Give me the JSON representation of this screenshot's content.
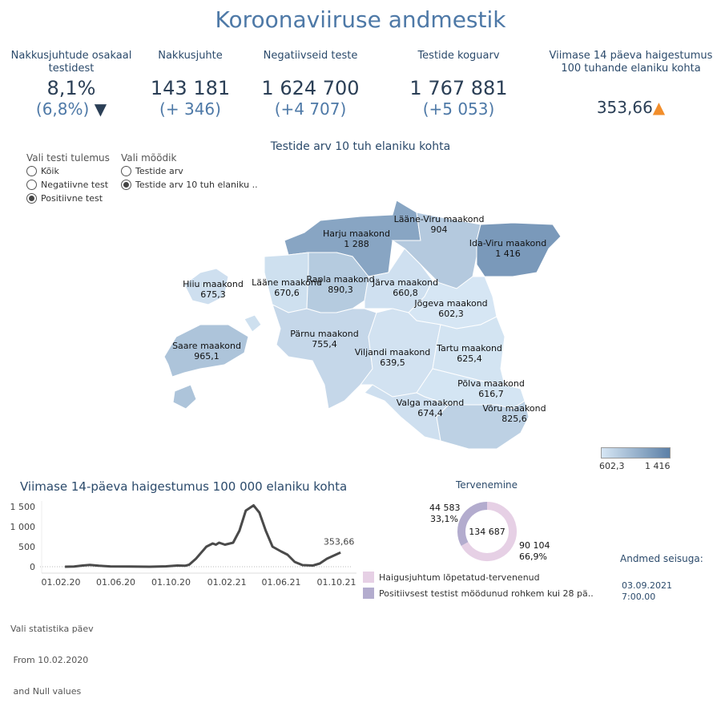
{
  "title": "Koroonaviiruse andmestik",
  "kpis": [
    {
      "label": "Nakkusjuhtude osakaal testidest",
      "value": "8,1%",
      "delta": "(6,8%)",
      "trend": "down",
      "trend_color": "#2b3f56"
    },
    {
      "label": "Nakkusjuhte",
      "value": "143 181",
      "delta": "(+ 346)"
    },
    {
      "label": "Negatiivseid teste",
      "value": "1 624 700",
      "delta": "(+4 707)"
    },
    {
      "label": "Testide koguarv",
      "value": "1 767 881",
      "delta": "(+5 053)"
    },
    {
      "label": "Viimase 14 päeva haigestumus 100 tuhande elaniku kohta",
      "value": "353,66",
      "trend": "up",
      "trend_color": "#f28e2b"
    }
  ],
  "filters": {
    "test_result": {
      "label": "Vali testi tulemus",
      "options": [
        "Kõik",
        "Negatiivne test",
        "Positiivne test"
      ],
      "selected": "Positiivne test"
    },
    "metric": {
      "label": "Vali mõõdik",
      "options": [
        "Testide arv",
        "Testide arv 10 tuh elaniku .."
      ],
      "selected": "Testide arv 10 tuh elaniku .."
    }
  },
  "map": {
    "title": "Testide arv 10 tuh elaniku kohta",
    "color_low": "#d6e6f4",
    "color_high": "#5b7fa6",
    "legend_min": "602,3",
    "legend_max": "1 416",
    "counties": [
      {
        "name": "Harju maakond",
        "value": "1 288",
        "v": 1288
      },
      {
        "name": "Lääne-Viru maakond",
        "value": "904",
        "v": 904
      },
      {
        "name": "Ida-Viru maakond",
        "value": "1 416",
        "v": 1416
      },
      {
        "name": "Hiiu maakond",
        "value": "675,3",
        "v": 675.3
      },
      {
        "name": "Lääne maakond",
        "value": "670,6",
        "v": 670.6
      },
      {
        "name": "Rapla maakond",
        "value": "890,3",
        "v": 890.3
      },
      {
        "name": "Järva maakond",
        "value": "660,8",
        "v": 660.8
      },
      {
        "name": "Jõgeva maakond",
        "value": "602,3",
        "v": 602.3
      },
      {
        "name": "Saare maakond",
        "value": "965,1",
        "v": 965.1
      },
      {
        "name": "Pärnu maakond",
        "value": "755,4",
        "v": 755.4
      },
      {
        "name": "Viljandi maakond",
        "value": "639,5",
        "v": 639.5
      },
      {
        "name": "Tartu maakond",
        "value": "625,4",
        "v": 625.4
      },
      {
        "name": "Põlva maakond",
        "value": "616,7",
        "v": 616.7
      },
      {
        "name": "Valga maakond",
        "value": "674,4",
        "v": 674.4
      },
      {
        "name": "Võru maakond",
        "value": "825,6",
        "v": 825.6
      }
    ]
  },
  "chart_data": [
    {
      "type": "line",
      "title": "Viimase 14-päeva haigestumus 100 000 elaniku kohta",
      "x_ticks": [
        "01.02.20",
        "01.06.20",
        "01.10.20",
        "01.02.21",
        "01.06.21",
        "01.10.21"
      ],
      "y_ticks": [
        "0",
        "500",
        "1 000",
        "1 500"
      ],
      "ylim": [
        0,
        1600
      ],
      "last_label": "353,66",
      "line_color": "#4a4a4a",
      "points": [
        [
          "2020-02-10",
          0
        ],
        [
          "2020-03-01",
          5
        ],
        [
          "2020-03-20",
          30
        ],
        [
          "2020-04-05",
          45
        ],
        [
          "2020-04-25",
          25
        ],
        [
          "2020-05-20",
          8
        ],
        [
          "2020-07-01",
          3
        ],
        [
          "2020-08-15",
          0
        ],
        [
          "2020-09-20",
          10
        ],
        [
          "2020-10-15",
          30
        ],
        [
          "2020-11-01",
          25
        ],
        [
          "2020-11-10",
          50
        ],
        [
          "2020-11-25",
          200
        ],
        [
          "2020-12-18",
          500
        ],
        [
          "2021-01-01",
          580
        ],
        [
          "2021-01-08",
          550
        ],
        [
          "2021-01-15",
          600
        ],
        [
          "2021-01-28",
          550
        ],
        [
          "2021-02-15",
          600
        ],
        [
          "2021-03-01",
          900
        ],
        [
          "2021-03-15",
          1400
        ],
        [
          "2021-04-01",
          1530
        ],
        [
          "2021-04-14",
          1350
        ],
        [
          "2021-04-28",
          900
        ],
        [
          "2021-05-13",
          500
        ],
        [
          "2021-06-01",
          380
        ],
        [
          "2021-06-15",
          300
        ],
        [
          "2021-07-01",
          120
        ],
        [
          "2021-07-18",
          40
        ],
        [
          "2021-08-10",
          30
        ],
        [
          "2021-08-25",
          80
        ],
        [
          "2021-09-10",
          200
        ],
        [
          "2021-10-10",
          353.66
        ]
      ]
    },
    {
      "type": "pie",
      "title": "Tervenemine",
      "total": "134 687",
      "slices": [
        {
          "name": "Haigusjuhtum lõpetatud-tervenenud",
          "value": 90104,
          "label": "90 104",
          "pct": "66,9%",
          "color": "#e6d0e5"
        },
        {
          "name": "Positiivsest testist möödunud rohkem kui 28 pä..",
          "value": 44583,
          "label": "44 583",
          "pct": "33,1%",
          "color": "#b3acce"
        }
      ]
    }
  ],
  "footer": {
    "filter_note": [
      "Vali statistika päev",
      " From 10.02.2020",
      " and Null values"
    ],
    "as_of_label": "Andmed seisuga:",
    "as_of_date": "03.09.2021",
    "as_of_time": "7:00.00"
  }
}
